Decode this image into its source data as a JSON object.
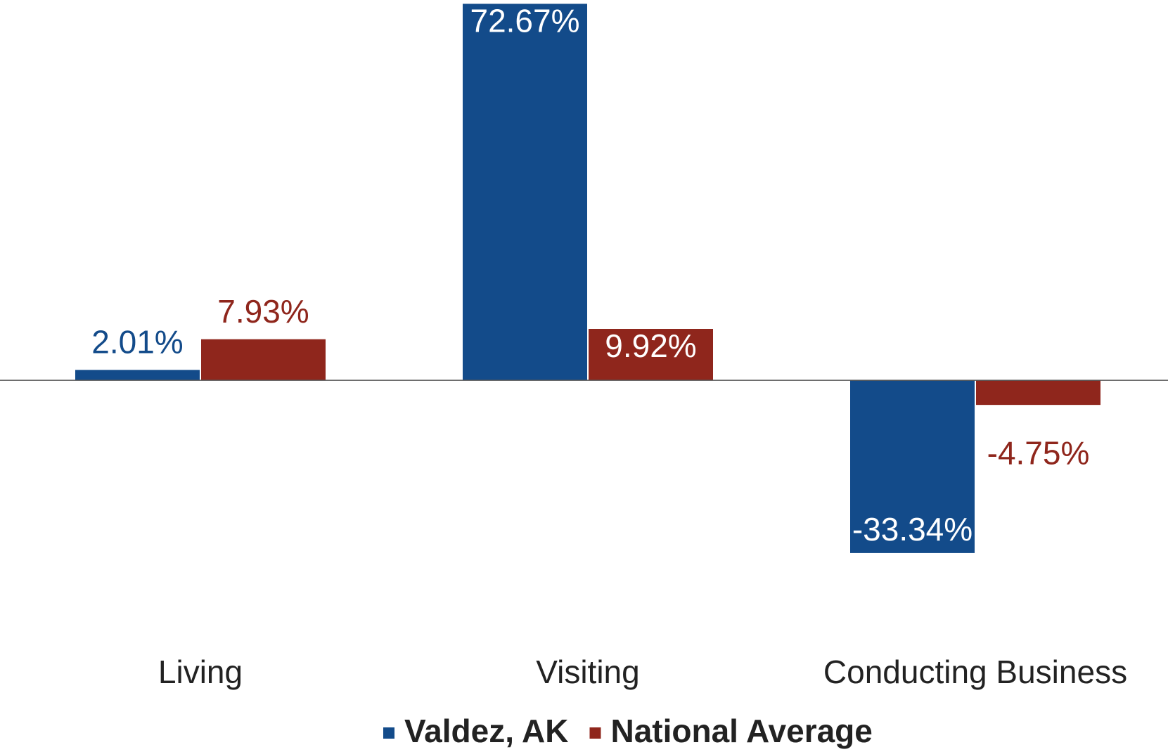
{
  "chart_data": {
    "type": "bar",
    "categories": [
      "Living",
      "Visiting",
      "Conducting Business"
    ],
    "series": [
      {
        "name": "Valdez, AK",
        "color": "#134b8a",
        "values": [
          2.01,
          72.67,
          -33.34
        ],
        "value_labels": [
          "2.01%",
          "72.67%",
          "-33.34%"
        ]
      },
      {
        "name": "National Average",
        "color": "#8f261c",
        "values": [
          7.93,
          9.92,
          -4.75
        ],
        "value_labels": [
          "7.93%",
          "9.92%",
          "-4.75%"
        ]
      }
    ],
    "ylim": [
      -40,
      73
    ]
  }
}
